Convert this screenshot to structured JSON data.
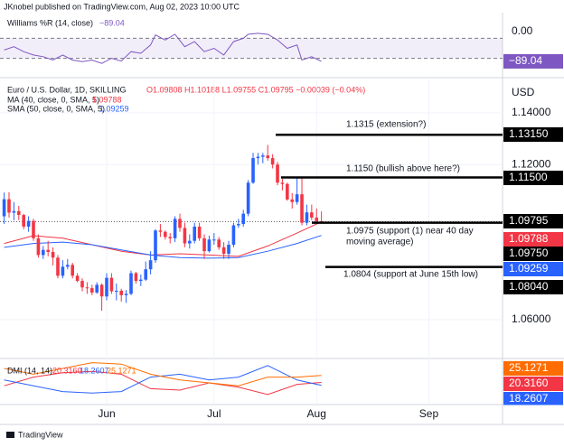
{
  "chart_data": {
    "type": "candlestick",
    "header": "JKnobel published on TradingView.com, Aug 02, 2023 10:00 UTC",
    "symbol": "Euro / U.S. Dollar, 1D, SKILLING",
    "ohlc_text": "O1.09808 H1.10188 L1.09755 C1.09795 −0.00039 (−0.04%)",
    "currency": "USD",
    "brand": "TradingView",
    "up_color": "#2962ff",
    "down_color": "#f23645",
    "grid": true,
    "xlim": [
      -0.85,
      102.1
    ],
    "xticks": [
      {
        "value": 21,
        "label": "Jun"
      },
      {
        "value": 43,
        "label": "Jul"
      },
      {
        "value": 64,
        "label": "Aug"
      },
      {
        "value": 87,
        "label": "Sep"
      }
    ],
    "ylim": [
      1.0457,
      1.1515
    ],
    "yticks": [
      {
        "value": 1.14,
        "label": "1.14000"
      },
      {
        "value": 1.12,
        "label": "1.12000"
      },
      {
        "value": 1.06,
        "label": "1.06000"
      }
    ],
    "open": [
      1.1,
      1.1066,
      1.1014,
      1.102,
      1.1005,
      1.096,
      1.0982,
      1.0915,
      1.085,
      1.087,
      1.0862,
      1.084,
      1.077,
      1.0805,
      1.0812,
      1.077,
      1.075,
      1.0725,
      1.0722,
      1.0705,
      1.0735,
      1.069,
      1.0762,
      1.071,
      1.0712,
      1.0695,
      1.07,
      1.078,
      1.075,
      1.0755,
      1.0795,
      1.083,
      1.0945,
      1.094,
      1.092,
      1.0915,
      1.099,
      1.0955,
      1.0895,
      1.0905,
      1.096,
      1.0915,
      1.0865,
      1.091,
      1.091,
      1.088,
      1.0855,
      1.089,
      1.0965,
      1.097,
      1.101,
      1.113,
      1.1225,
      1.123,
      1.1235,
      1.1225,
      1.12,
      1.113,
      1.1125,
      1.1065,
      1.1055,
      1.1085,
      1.0975,
      1.1015,
      1.0995,
      1.09808
    ],
    "high": [
      1.1092,
      1.1093,
      1.1055,
      1.104,
      1.101,
      1.1,
      1.099,
      1.093,
      1.0885,
      1.0905,
      1.088,
      1.085,
      1.083,
      1.0835,
      1.082,
      1.078,
      1.076,
      1.0745,
      1.0735,
      1.0745,
      1.074,
      1.078,
      1.078,
      1.074,
      1.072,
      1.0715,
      1.079,
      1.0785,
      1.0775,
      1.0825,
      1.0865,
      1.095,
      1.097,
      1.0945,
      1.0935,
      1.1,
      1.101,
      1.0975,
      1.093,
      1.0975,
      1.0975,
      1.093,
      1.0925,
      1.0935,
      1.092,
      1.09,
      1.0905,
      1.0975,
      1.099,
      1.1025,
      1.114,
      1.1245,
      1.1245,
      1.1245,
      1.1276,
      1.124,
      1.121,
      1.1145,
      1.113,
      1.109,
      1.115,
      1.115,
      1.1045,
      1.1045,
      1.103,
      1.10188
    ],
    "low": [
      1.097,
      1.0995,
      1.0985,
      1.0985,
      1.095,
      1.094,
      1.0905,
      1.084,
      1.0835,
      1.0845,
      1.081,
      1.076,
      1.076,
      1.0795,
      1.076,
      1.0745,
      1.071,
      1.07,
      1.0695,
      1.07,
      1.0635,
      1.0675,
      1.07,
      1.0675,
      1.067,
      1.0665,
      1.0695,
      1.074,
      1.073,
      1.075,
      1.0775,
      1.082,
      1.092,
      1.091,
      1.0895,
      1.09,
      1.094,
      1.088,
      1.0875,
      1.0895,
      1.0905,
      1.0835,
      1.086,
      1.089,
      1.087,
      1.0835,
      1.0835,
      1.088,
      1.0955,
      1.096,
      1.1,
      1.1125,
      1.12,
      1.1205,
      1.1215,
      1.1185,
      1.112,
      1.11,
      1.106,
      1.103,
      1.1045,
      1.0965,
      1.0965,
      1.0985,
      1.097,
      1.09755
    ],
    "close": [
      1.1066,
      1.1014,
      1.102,
      1.1005,
      1.096,
      1.0982,
      1.0915,
      1.085,
      1.087,
      1.0862,
      1.084,
      1.077,
      1.0805,
      1.0812,
      1.077,
      1.075,
      1.0725,
      1.0722,
      1.0705,
      1.0735,
      1.069,
      1.0762,
      1.071,
      1.0712,
      1.0695,
      1.07,
      1.078,
      1.075,
      1.0755,
      1.0795,
      1.083,
      1.0945,
      1.094,
      1.092,
      1.0915,
      1.099,
      1.0955,
      1.0895,
      1.0905,
      1.096,
      1.0915,
      1.0865,
      1.091,
      1.091,
      1.088,
      1.0855,
      1.089,
      1.0965,
      1.097,
      1.101,
      1.113,
      1.1225,
      1.123,
      1.1235,
      1.1225,
      1.12,
      1.113,
      1.1125,
      1.1065,
      1.1055,
      1.1085,
      1.0975,
      1.1015,
      1.0995,
      1.0981,
      1.09795
    ],
    "last_price": 1.09795,
    "series": [
      {
        "name": "MA (40, close, 0, SMA, 5)",
        "color": "#f23645",
        "x": [
          0,
          6,
          12,
          18,
          24,
          30,
          36,
          42,
          48,
          54,
          60,
          65
        ],
        "values": [
          1.0895,
          1.0925,
          1.0915,
          1.089,
          1.0865,
          1.085,
          1.0855,
          1.085,
          1.0845,
          1.0885,
          1.0935,
          1.09788
        ]
      },
      {
        "name": "SMA (50, close, 0, SMA, 5)",
        "color": "#2962ff",
        "x": [
          0,
          6,
          12,
          18,
          24,
          30,
          36,
          42,
          48,
          54,
          60,
          65
        ],
        "values": [
          1.088,
          1.0895,
          1.09,
          1.089,
          1.087,
          1.085,
          1.084,
          1.0838,
          1.084,
          1.0865,
          1.0895,
          1.09259
        ]
      }
    ],
    "levels": [
      {
        "value": 1.1315,
        "label": "1.13150",
        "text": [
          "1.1315 (extension?)"
        ]
      },
      {
        "value": 1.115,
        "label": "1.11500",
        "text": [
          "1.1150 (bullish above here?)"
        ]
      },
      {
        "value": 1.0975,
        "label": "1.09750",
        "text": [
          "1.0975 (support (1) near 40 day",
          "moving average)"
        ]
      },
      {
        "value": 1.0804,
        "label": "1.08040",
        "text": [
          "1.0804 (support at June 15th low)"
        ]
      }
    ],
    "williams": {
      "title": "Williams %R (14, close)",
      "color": "#7e57c2",
      "ylim": [
        -100,
        0
      ],
      "yticks": [
        {
          "value": 0,
          "label": "0.00"
        }
      ],
      "bands": [
        -20,
        -80
      ],
      "x": [
        0,
        2,
        4,
        6,
        8,
        10,
        12,
        14,
        16,
        18,
        20,
        22,
        24,
        26,
        28,
        30,
        31,
        33,
        35,
        37,
        39,
        41,
        43,
        45,
        47,
        49,
        50,
        52,
        54,
        56,
        58,
        60,
        61,
        63,
        65
      ],
      "values": [
        -55,
        -45,
        -60,
        -70,
        -75,
        -85,
        -70,
        -85,
        -90,
        -85,
        -95,
        -80,
        -88,
        -60,
        -65,
        -40,
        -10,
        -25,
        -8,
        -45,
        -30,
        -60,
        -50,
        -70,
        -30,
        -20,
        -8,
        -5,
        -8,
        -25,
        -50,
        -40,
        -85,
        -75,
        -89.04
      ],
      "value_label": "−89.04"
    },
    "dmi": {
      "title": "DMI (14, 14)",
      "ylim": [
        10,
        35
      ],
      "series": [
        {
          "color": "#f23645",
          "label": "20.3160",
          "x": [
            0,
            6,
            12,
            18,
            24,
            30,
            36,
            42,
            48,
            54,
            60,
            65
          ],
          "values": [
            18,
            24,
            27,
            28,
            26,
            16,
            15,
            20,
            17,
            12,
            19,
            20.316
          ]
        },
        {
          "color": "#2962ff",
          "label": "18.2607",
          "x": [
            0,
            6,
            12,
            18,
            24,
            30,
            36,
            42,
            48,
            54,
            60,
            65
          ],
          "values": [
            22,
            18,
            14,
            13,
            14,
            24,
            26,
            22,
            24,
            32,
            22,
            18.2607
          ]
        },
        {
          "color": "#ff6d00",
          "label": "25.1271",
          "x": [
            0,
            6,
            12,
            18,
            24,
            30,
            36,
            42,
            48,
            54,
            60,
            65
          ],
          "values": [
            30,
            26,
            30,
            34,
            33,
            26,
            22,
            20,
            18,
            24,
            24,
            25.1271
          ]
        }
      ]
    }
  }
}
